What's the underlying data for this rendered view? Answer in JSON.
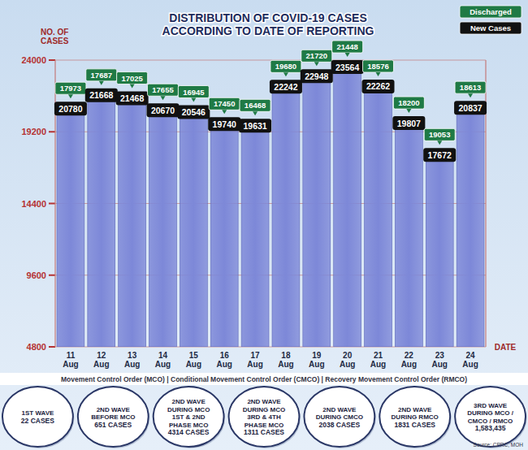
{
  "chart_data": {
    "type": "bar",
    "title": "DISTRIBUTION OF COVID-19 CASES ACCORDING TO DATE OF REPORTING",
    "y_label": "NO. OF CASES",
    "x_label": "DATE",
    "categories": [
      "11 Aug",
      "12 Aug",
      "13 Aug",
      "14 Aug",
      "15 Aug",
      "16 Aug",
      "17 Aug",
      "18 Aug",
      "19 Aug",
      "20 Aug",
      "21 Aug",
      "22 Aug",
      "23 Aug",
      "24 Aug"
    ],
    "series": [
      {
        "name": "Discharged",
        "color": "#1f7a45",
        "values": [
          17973,
          17687,
          17025,
          17655,
          16945,
          17450,
          16468,
          19680,
          21720,
          21448,
          18576,
          18200,
          19053,
          18613
        ]
      },
      {
        "name": "New Cases",
        "color": "#7d88d8",
        "values": [
          20780,
          21668,
          21468,
          20670,
          20546,
          19740,
          19631,
          22242,
          22948,
          23564,
          22262,
          19807,
          17672,
          20837
        ]
      }
    ],
    "ylim": [
      4800,
      24000
    ],
    "yticks": [
      4800,
      9600,
      14400,
      19200,
      24000
    ],
    "grid": true,
    "data_labels": true,
    "legend": "top-right",
    "footer": "Movement Control Order (MCO) | Conditional Movement Control Order (CMCO) | Recovery Movement Control Order (RMCO)",
    "waves": [
      {
        "label": "1ST WAVE",
        "cases": "22 CASES"
      },
      {
        "label": "2ND WAVE BEFORE MCO",
        "cases": "651 CASES"
      },
      {
        "label": "2ND WAVE DURING MCO 1ST & 2ND PHASE MCO",
        "cases": "4314 CASES"
      },
      {
        "label": "2ND WAVE DURING MCO 3RD & 4TH PHASE MCO",
        "cases": "1311 CASES"
      },
      {
        "label": "2ND WAVE DURING CMCO",
        "cases": "2038 CASES"
      },
      {
        "label": "2ND WAVE DURING RMCO",
        "cases": "1831 CASES"
      },
      {
        "label": "3RD WAVE DURING MCO / CMCO / RMCO",
        "cases": "1,583,435"
      }
    ],
    "source": "Source: CPRC, MOH"
  }
}
